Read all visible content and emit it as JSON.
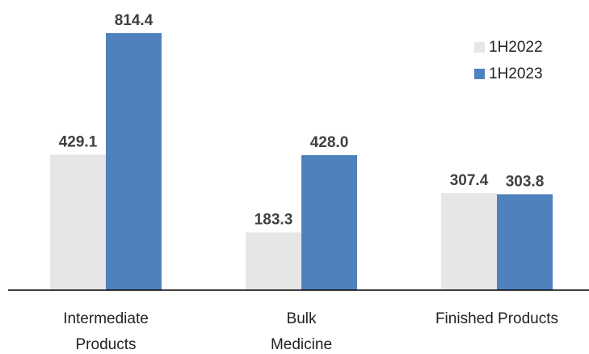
{
  "chart_data": {
    "type": "bar",
    "categories": [
      [
        "Intermediate",
        "Products"
      ],
      [
        "Bulk",
        "Medicine"
      ],
      [
        "Finished Products"
      ]
    ],
    "series": [
      {
        "name": "1H2022",
        "color": "#e6e6e6",
        "values": [
          429.1,
          183.3,
          307.4
        ],
        "labels": [
          "429.1",
          "183.3",
          "307.4"
        ]
      },
      {
        "name": "1H2023",
        "color": "#4f81bd",
        "values": [
          814.4,
          428.0,
          303.8
        ],
        "labels": [
          "814.4",
          "428.0",
          "303.8"
        ]
      }
    ],
    "ylim": [
      0,
      814.4
    ],
    "grid": false,
    "legend_position": "top-right"
  }
}
